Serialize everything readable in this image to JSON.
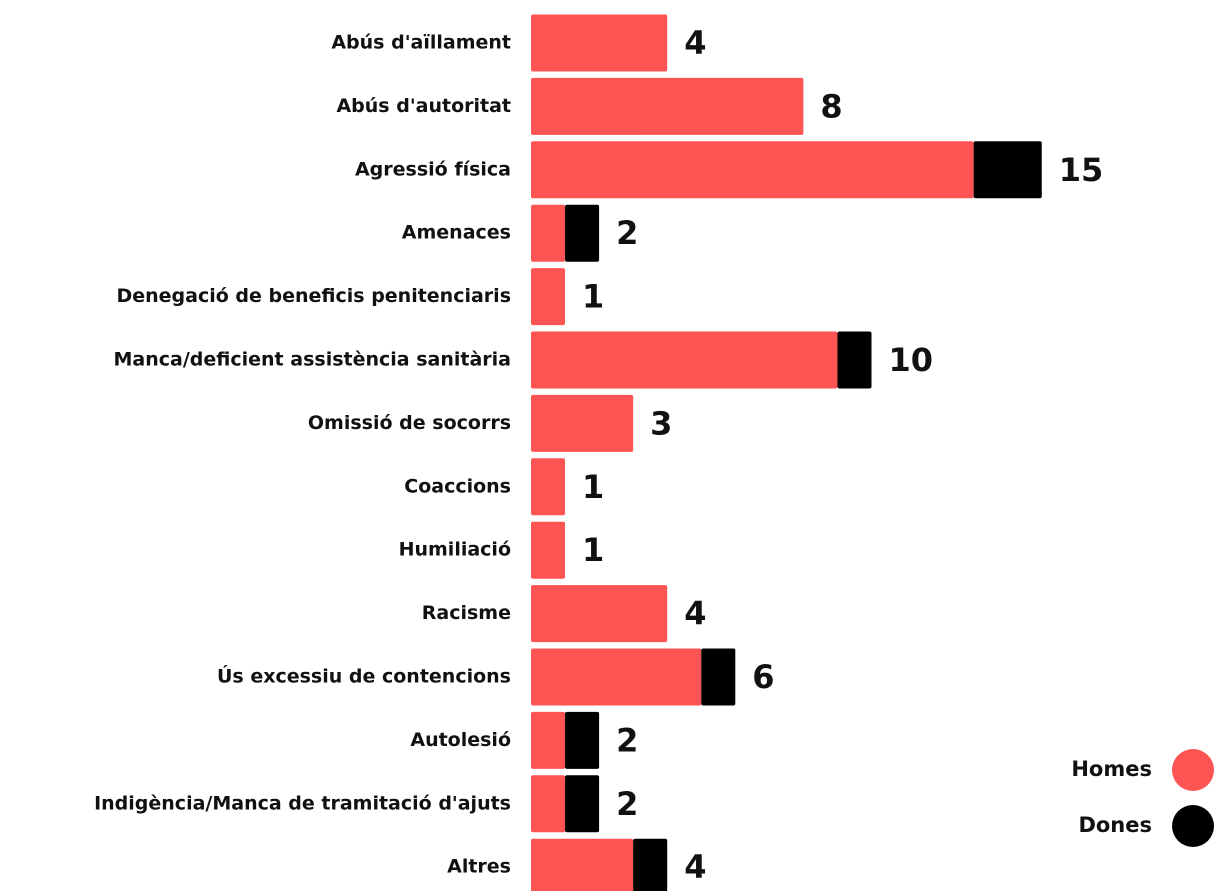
{
  "chart_data": {
    "type": "stacked_barh",
    "categories": [
      "Abús d'aïllament",
      "Abús d'autoritat",
      "Agressió física",
      "Amenaces",
      "Denegació de beneficis penitenciaris",
      "Manca/deficient assistència sanitària",
      "Omissió de socorrs",
      "Coaccions",
      "Humiliació",
      "Racisme",
      "Ús excessiu de contencions",
      "Autolesió",
      "Indigència/Manca de tramitació d'ajuts",
      "Altres"
    ],
    "series": [
      {
        "name": "Homes",
        "color": "#ff5454",
        "values": [
          4,
          8,
          13,
          1,
          1,
          9,
          3,
          1,
          1,
          4,
          5,
          1,
          1,
          3
        ]
      },
      {
        "name": "Dones",
        "color": "#000000",
        "values": [
          0,
          0,
          2,
          1,
          0,
          1,
          0,
          0,
          0,
          0,
          1,
          1,
          1,
          1
        ]
      }
    ],
    "totals": [
      4,
      8,
      15,
      2,
      1,
      10,
      3,
      1,
      1,
      4,
      6,
      2,
      2,
      4
    ],
    "xlim": [
      0,
      20
    ],
    "legend": "bottom-right"
  }
}
